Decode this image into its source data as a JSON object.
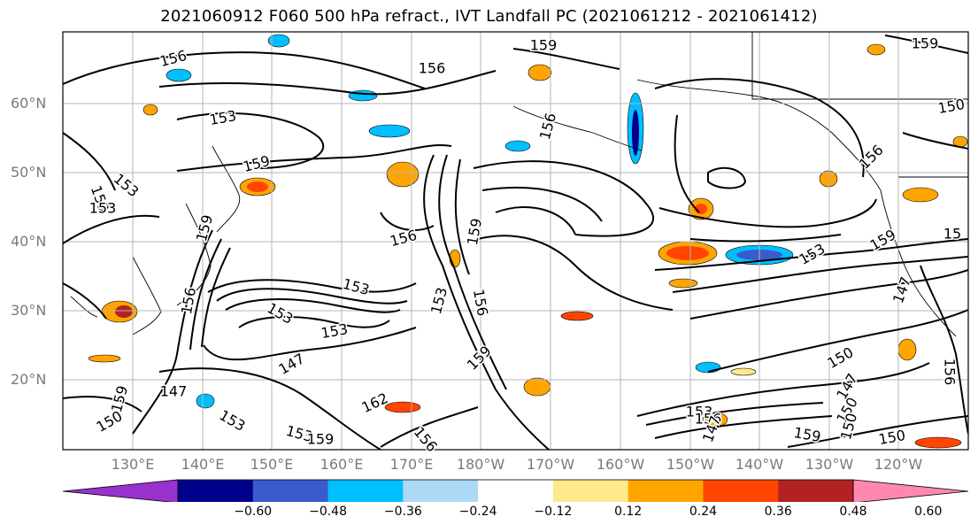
{
  "title": "2021060912 F060 500 hPa refract., IVT Landfall PC (2021061212 - 2021061412)",
  "lat_labels": [
    "60°N",
    "50°N",
    "40°N",
    "30°N",
    "20°N"
  ],
  "lon_labels": [
    "130°E",
    "140°E",
    "150°E",
    "160°E",
    "170°E",
    "180°W",
    "170°W",
    "160°W",
    "150°W",
    "140°W",
    "130°W",
    "120°W"
  ],
  "contour_labels": [
    "156",
    "159",
    "159",
    "156",
    "153",
    "153",
    "159",
    "156",
    "156",
    "153",
    "159",
    "156",
    "159",
    "153",
    "156",
    "153",
    "153",
    "147",
    "147",
    "159",
    "162",
    "156",
    "153",
    "159",
    "150",
    "150",
    "147",
    "150",
    "159",
    "150",
    "153",
    "156",
    "147",
    "153",
    "159",
    "147",
    "150",
    "15",
    "156",
    "159",
    "150",
    "156",
    "153",
    "159",
    "153"
  ],
  "colorbar": {
    "ticks": [
      "−0.60",
      "−0.48",
      "−0.36",
      "−0.24",
      "−0.12",
      "0.12",
      "0.24",
      "0.36",
      "0.48",
      "0.60"
    ],
    "colors": [
      "#9932cc",
      "#00008b",
      "#3a5bcb",
      "#00bfff",
      "#add8f6",
      "#ffffff",
      "#ffe98a",
      "#ffa500",
      "#ff4500",
      "#b22222",
      "#ff88b0"
    ]
  }
}
